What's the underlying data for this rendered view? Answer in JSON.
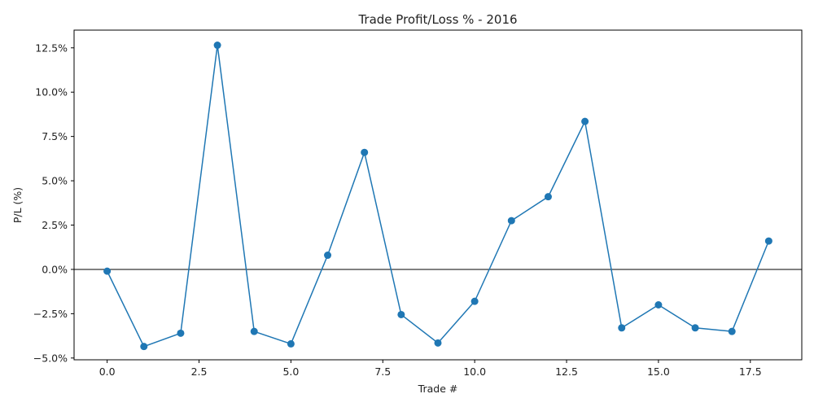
{
  "chart_data": {
    "type": "line",
    "title": "Trade Profit/Loss % - 2016",
    "xlabel": "Trade #",
    "ylabel": "P/L (%)",
    "xlim": [
      -0.9,
      18.9
    ],
    "ylim": [
      -5.1,
      13.5
    ],
    "x_ticks": [
      0.0,
      2.5,
      5.0,
      7.5,
      10.0,
      12.5,
      15.0,
      17.5
    ],
    "x_tick_labels": [
      "0.0",
      "2.5",
      "5.0",
      "7.5",
      "10.0",
      "12.5",
      "15.0",
      "17.5"
    ],
    "y_ticks": [
      -5.0,
      -2.5,
      0.0,
      2.5,
      5.0,
      7.5,
      10.0,
      12.5
    ],
    "y_tick_labels": [
      "−5.0%",
      "−2.5%",
      "0.0%",
      "2.5%",
      "5.0%",
      "7.5%",
      "10.0%",
      "12.5%"
    ],
    "grid": false,
    "reference_line_y": 0,
    "series": [
      {
        "color": "#1f77b4",
        "x": [
          0,
          1,
          2,
          3,
          4,
          5,
          6,
          7,
          8,
          9,
          10,
          11,
          12,
          13,
          14,
          15,
          16,
          17,
          18
        ],
        "values": [
          -0.1,
          -4.35,
          -3.6,
          12.65,
          -3.5,
          -4.2,
          0.8,
          6.6,
          -2.55,
          -4.15,
          -1.8,
          2.75,
          4.1,
          8.35,
          -3.3,
          -2.0,
          -3.3,
          -3.5,
          1.6
        ]
      }
    ],
    "colors": {
      "line": "#1f77b4",
      "reference": "#000000",
      "axes": "#000000"
    }
  }
}
